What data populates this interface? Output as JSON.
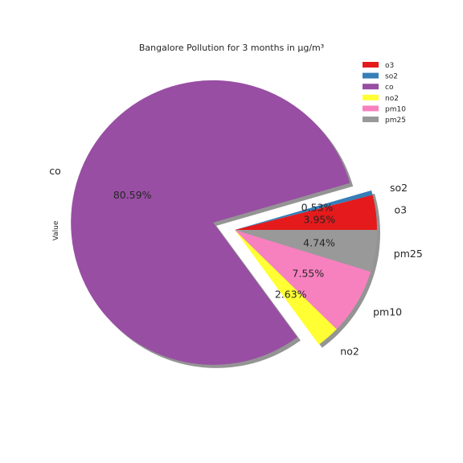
{
  "chart_data": {
    "type": "pie",
    "title": "Bangalore Pollution for 3 months in µg/m³",
    "ylabel": "Value",
    "legend_position": "top-right",
    "shadow": true,
    "slices": [
      {
        "label": "o3",
        "percent": 3.95,
        "color": "#e41a1c",
        "pct_text": "3.95%",
        "exploded": false
      },
      {
        "label": "so2",
        "percent": 0.53,
        "color": "#377eb8",
        "pct_text": "0.53%",
        "exploded": false
      },
      {
        "label": "co",
        "percent": 80.59,
        "color": "#984ea3",
        "pct_text": "80.59%",
        "exploded": true
      },
      {
        "label": "no2",
        "percent": 2.63,
        "color": "#ffff33",
        "pct_text": "2.63%",
        "exploded": false
      },
      {
        "label": "pm10",
        "percent": 7.55,
        "color": "#f781bf",
        "pct_text": "7.55%",
        "exploded": false
      },
      {
        "label": "pm25",
        "percent": 4.74,
        "color": "#999999",
        "pct_text": "4.74%",
        "exploded": false
      }
    ]
  }
}
